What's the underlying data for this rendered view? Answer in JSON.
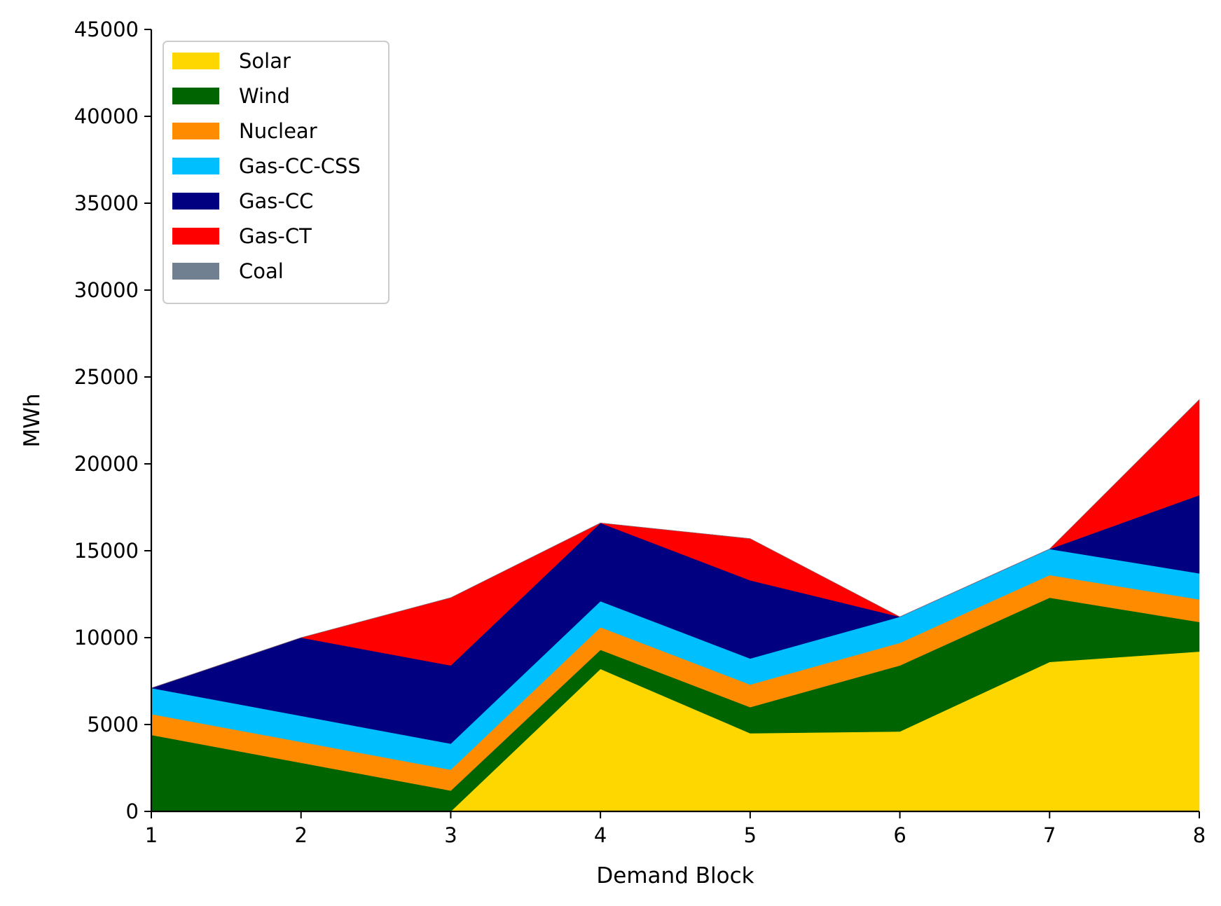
{
  "chart_data": {
    "type": "area",
    "stacked": true,
    "xlabel": "Demand Block",
    "ylabel": "MWh",
    "x": [
      1,
      2,
      3,
      4,
      5,
      6,
      7,
      8
    ],
    "xlim": [
      1,
      8
    ],
    "ylim": [
      0,
      45000
    ],
    "yticks": [
      0,
      5000,
      10000,
      15000,
      20000,
      25000,
      30000,
      35000,
      40000,
      45000
    ],
    "grid": false,
    "legend_position": "top-left",
    "series": [
      {
        "name": "Solar",
        "color": "#FFD700",
        "values": [
          0,
          0,
          0,
          8200,
          4500,
          4600,
          8600,
          9200
        ]
      },
      {
        "name": "Wind",
        "color": "#006400",
        "values": [
          4400,
          2800,
          1200,
          1100,
          1500,
          3800,
          3700,
          1700
        ]
      },
      {
        "name": "Nuclear",
        "color": "#FF8C00",
        "values": [
          1200,
          1200,
          1200,
          1300,
          1300,
          1300,
          1300,
          1300
        ]
      },
      {
        "name": "Gas-CC-CSS",
        "color": "#00BFFF",
        "values": [
          1500,
          1500,
          1500,
          1500,
          1500,
          1500,
          1500,
          1500
        ]
      },
      {
        "name": "Gas-CC",
        "color": "#000080",
        "values": [
          0,
          4500,
          4500,
          4500,
          4500,
          0,
          0,
          4500
        ]
      },
      {
        "name": "Gas-CT",
        "color": "#FF0000",
        "values": [
          0,
          0,
          3900,
          0,
          2400,
          0,
          0,
          5500
        ]
      },
      {
        "name": "Coal",
        "color": "#708090",
        "values": [
          0,
          0,
          0,
          0,
          0,
          0,
          0,
          0
        ]
      }
    ]
  }
}
